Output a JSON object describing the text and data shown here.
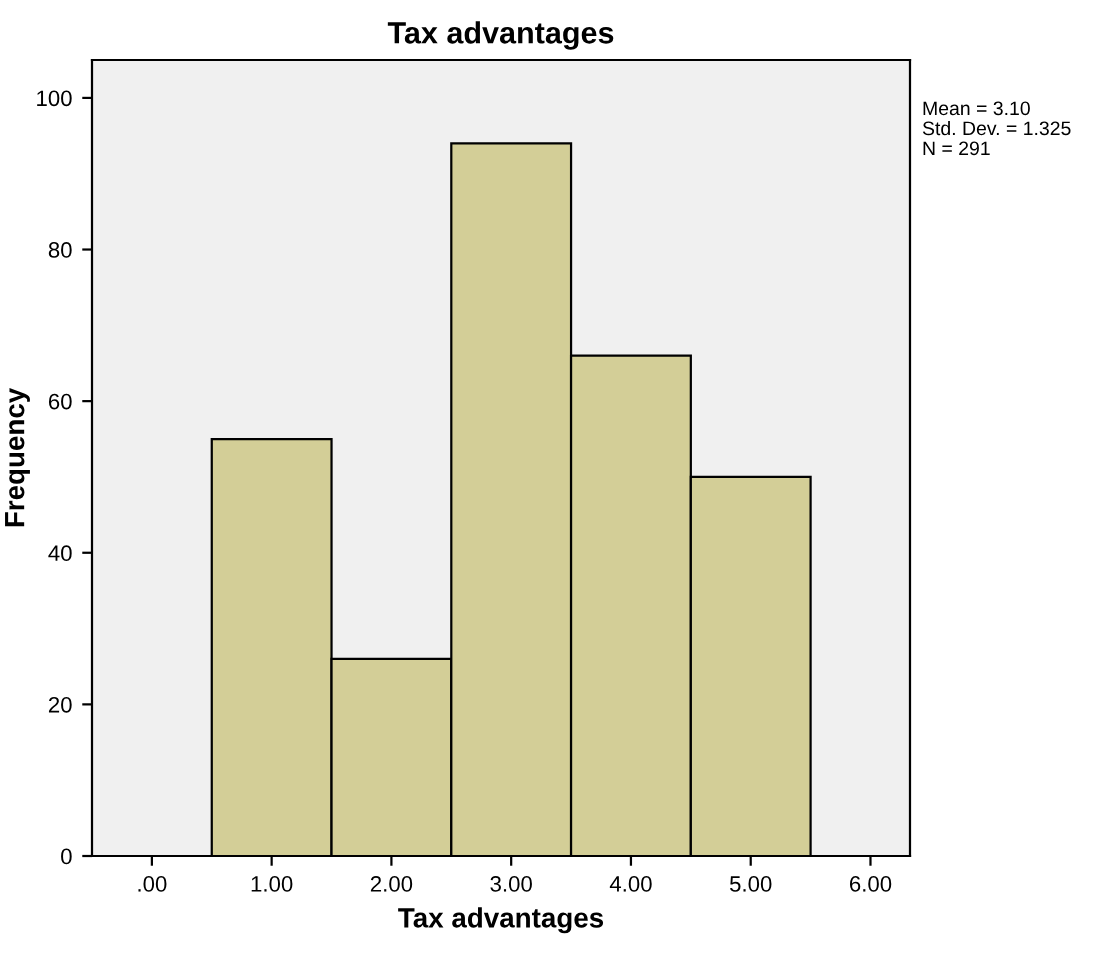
{
  "chart_data": {
    "type": "histogram",
    "title": "Tax advantages",
    "xlabel": "Tax advantages",
    "ylabel": "Frequency",
    "bins": [
      0.5,
      1.5,
      2.5,
      3.5,
      4.5,
      5.5
    ],
    "values": [
      55,
      26,
      94,
      66,
      50
    ],
    "color": "#d3ce97",
    "xlim": [
      -0.5,
      6.33
    ],
    "xticks": [
      {
        "value": 0,
        "label": ".00"
      },
      {
        "value": 1,
        "label": "1.00"
      },
      {
        "value": 2,
        "label": "2.00"
      },
      {
        "value": 3,
        "label": "3.00"
      },
      {
        "value": 4,
        "label": "4.00"
      },
      {
        "value": 5,
        "label": "5.00"
      },
      {
        "value": 6,
        "label": "6.00"
      }
    ],
    "ylim": [
      0,
      105
    ],
    "yticks": [
      0,
      20,
      40,
      60,
      80,
      100
    ],
    "annotations": [
      "Mean = 3.10",
      "Std. Dev. = 1.325",
      "N = 291"
    ],
    "grid": false
  }
}
